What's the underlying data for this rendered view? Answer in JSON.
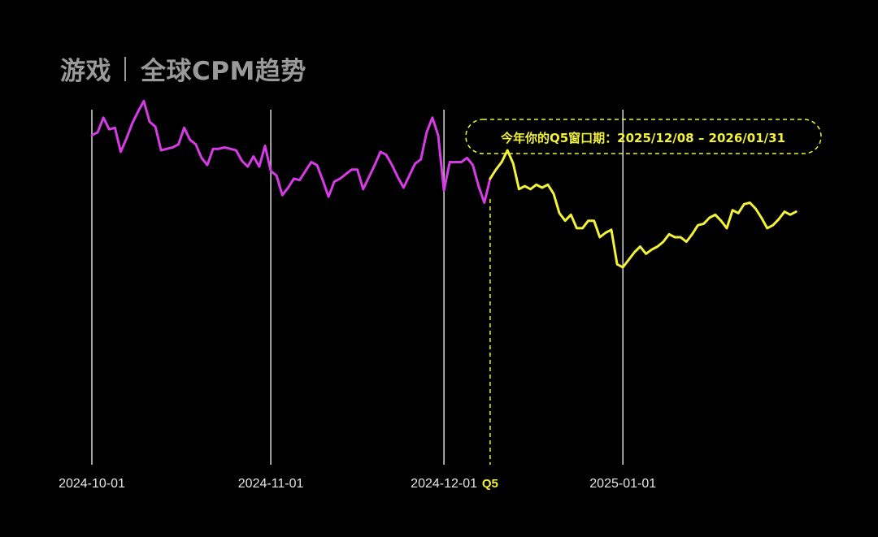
{
  "title": {
    "main": "游戏",
    "sub": "全球CPM趋势"
  },
  "colors": {
    "background": "#000000",
    "title": "#9a9a9a",
    "pre_q5_line": "#d63be6",
    "q5_line": "#f2f23a",
    "gridline": "#d9d9d9",
    "tick_label": "#e6e6e6"
  },
  "chart_data": {
    "type": "line",
    "title": "全球CPM趋势",
    "xlabel": "",
    "ylabel": "",
    "y_tick_labels": "none",
    "grid": "vertical lines at month starts",
    "x_ticks": [
      {
        "date": "2024-10-01",
        "label": "2024-10-01",
        "style": "solid"
      },
      {
        "date": "2024-11-01",
        "label": "2024-11-01",
        "style": "solid"
      },
      {
        "date": "2024-12-01",
        "label": "2024-12-01",
        "style": "solid"
      },
      {
        "date": "2024-12-09",
        "label": "Q5",
        "style": "dashed-highlight"
      },
      {
        "date": "2025-01-01",
        "label": "2025-01-01",
        "style": "solid"
      }
    ],
    "annotation": {
      "text": "今年你的Q5窗口期：2025/12/08 – 2026/01/31",
      "style": "dashed rounded box, yellow text",
      "placement": "top-right"
    },
    "y_range": [
      0,
      100
    ],
    "series": [
      {
        "segment": "before_q5",
        "color": "#d63be6",
        "points": [
          [
            "2024-10-01",
            79.3
          ],
          [
            "2024-10-02",
            80.3
          ],
          [
            "2024-10-03",
            85.2
          ],
          [
            "2024-10-04",
            81.3
          ],
          [
            "2024-10-05",
            81.8
          ],
          [
            "2024-10-06",
            73.8
          ],
          [
            "2024-10-07",
            78.3
          ],
          [
            "2024-10-08",
            83.3
          ],
          [
            "2024-10-09",
            87.2
          ],
          [
            "2024-10-10",
            90.7
          ],
          [
            "2024-10-11",
            83.8
          ],
          [
            "2024-10-12",
            82.2
          ],
          [
            "2024-10-13",
            74.3
          ],
          [
            "2024-10-14",
            74.8
          ],
          [
            "2024-10-15",
            75.3
          ],
          [
            "2024-10-16",
            76.3
          ],
          [
            "2024-10-17",
            81.8
          ],
          [
            "2024-10-18",
            77.8
          ],
          [
            "2024-10-19",
            76.3
          ],
          [
            "2024-10-20",
            71.8
          ],
          [
            "2024-10-21",
            69.4
          ],
          [
            "2024-10-22",
            74.8
          ],
          [
            "2024-10-23",
            74.8
          ],
          [
            "2024-10-24",
            75.3
          ],
          [
            "2024-10-25",
            74.8
          ],
          [
            "2024-10-26",
            74.3
          ],
          [
            "2024-10-27",
            70.8
          ],
          [
            "2024-10-28",
            68.9
          ],
          [
            "2024-10-29",
            72.3
          ],
          [
            "2024-10-30",
            68.9
          ],
          [
            "2024-10-31",
            75.8
          ],
          [
            "2024-11-01",
            67.4
          ],
          [
            "2024-11-02",
            65.9
          ],
          [
            "2024-11-03",
            59.4
          ],
          [
            "2024-11-04",
            61.9
          ],
          [
            "2024-11-05",
            64.9
          ],
          [
            "2024-11-06",
            64.4
          ],
          [
            "2024-11-07",
            67.4
          ],
          [
            "2024-11-08",
            70.4
          ],
          [
            "2024-11-09",
            69.4
          ],
          [
            "2024-11-10",
            64.4
          ],
          [
            "2024-11-11",
            58.9
          ],
          [
            "2024-11-12",
            63.9
          ],
          [
            "2024-11-13",
            64.9
          ],
          [
            "2024-11-14",
            66.4
          ],
          [
            "2024-11-15",
            67.9
          ],
          [
            "2024-11-16",
            67.9
          ],
          [
            "2024-11-17",
            61.4
          ],
          [
            "2024-11-18",
            65.4
          ],
          [
            "2024-11-19",
            69.4
          ],
          [
            "2024-11-20",
            73.8
          ],
          [
            "2024-11-21",
            72.8
          ],
          [
            "2024-11-22",
            69.4
          ],
          [
            "2024-11-23",
            65.4
          ],
          [
            "2024-11-24",
            61.9
          ],
          [
            "2024-11-25",
            65.9
          ],
          [
            "2024-11-26",
            69.9
          ],
          [
            "2024-11-27",
            71.3
          ],
          [
            "2024-11-28",
            80.3
          ],
          [
            "2024-11-29",
            85.2
          ],
          [
            "2024-11-30",
            79.3
          ],
          [
            "2024-12-01",
            60.9
          ],
          [
            "2024-12-02",
            70.4
          ],
          [
            "2024-12-03",
            70.4
          ],
          [
            "2024-12-04",
            70.4
          ],
          [
            "2024-12-05",
            71.8
          ],
          [
            "2024-12-06",
            69.4
          ],
          [
            "2024-12-07",
            62.4
          ],
          [
            "2024-12-08",
            56.9
          ],
          [
            "2024-12-09",
            64.9
          ]
        ]
      },
      {
        "segment": "q5_window",
        "color": "#f2f23a",
        "points": [
          [
            "2024-12-09",
            64.9
          ],
          [
            "2024-12-10",
            67.9
          ],
          [
            "2024-12-11",
            70.4
          ],
          [
            "2024-12-12",
            74.3
          ],
          [
            "2024-12-13",
            69.9
          ],
          [
            "2024-12-14",
            61.4
          ],
          [
            "2024-12-15",
            62.4
          ],
          [
            "2024-12-16",
            61.4
          ],
          [
            "2024-12-17",
            62.9
          ],
          [
            "2024-12-18",
            61.9
          ],
          [
            "2024-12-19",
            62.9
          ],
          [
            "2024-12-20",
            59.9
          ],
          [
            "2024-12-21",
            53.4
          ],
          [
            "2024-12-22",
            50.9
          ],
          [
            "2024-12-23",
            52.9
          ],
          [
            "2024-12-24",
            48.4
          ],
          [
            "2024-12-25",
            48.4
          ],
          [
            "2024-12-26",
            50.9
          ],
          [
            "2024-12-27",
            50.9
          ],
          [
            "2024-12-28",
            45.4
          ],
          [
            "2024-12-29",
            46.9
          ],
          [
            "2024-12-30",
            47.9
          ],
          [
            "2024-12-31",
            36.4
          ],
          [
            "2025-01-01",
            35.4
          ],
          [
            "2025-01-02",
            37.9
          ],
          [
            "2025-01-03",
            40.4
          ],
          [
            "2025-01-04",
            42.3
          ],
          [
            "2025-01-05",
            39.9
          ],
          [
            "2025-01-06",
            41.3
          ],
          [
            "2025-01-07",
            42.3
          ],
          [
            "2025-01-08",
            43.9
          ],
          [
            "2025-01-09",
            46.4
          ],
          [
            "2025-01-10",
            45.4
          ],
          [
            "2025-01-11",
            45.4
          ],
          [
            "2025-01-12",
            43.9
          ],
          [
            "2025-01-13",
            46.4
          ],
          [
            "2025-01-14",
            49.4
          ],
          [
            "2025-01-15",
            49.9
          ],
          [
            "2025-01-16",
            51.9
          ],
          [
            "2025-01-17",
            52.9
          ],
          [
            "2025-01-18",
            50.9
          ],
          [
            "2025-01-19",
            48.4
          ],
          [
            "2025-01-20",
            54.4
          ],
          [
            "2025-01-21",
            53.4
          ],
          [
            "2025-01-22",
            56.4
          ],
          [
            "2025-01-23",
            56.9
          ],
          [
            "2025-01-24",
            54.9
          ],
          [
            "2025-01-25",
            51.9
          ],
          [
            "2025-01-26",
            48.4
          ],
          [
            "2025-01-27",
            49.4
          ],
          [
            "2025-01-28",
            51.4
          ],
          [
            "2025-01-29",
            53.9
          ],
          [
            "2025-01-30",
            52.9
          ],
          [
            "2025-01-31",
            53.9
          ]
        ]
      }
    ]
  }
}
